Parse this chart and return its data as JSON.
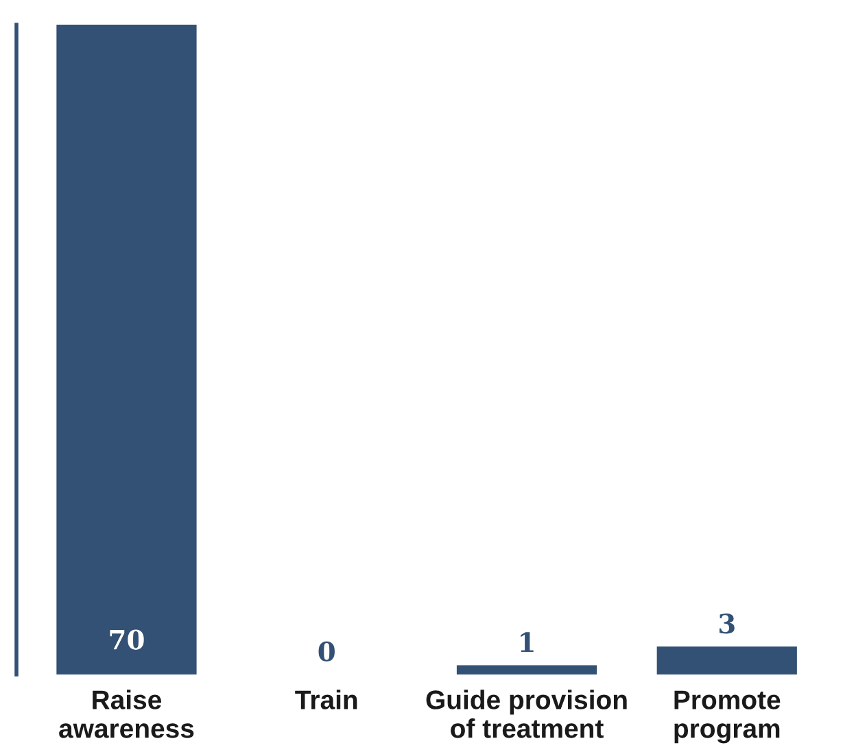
{
  "chart_data": {
    "type": "bar",
    "categories": [
      "Raise\nawareness",
      "Train",
      "Guide provision\nof treatment",
      "Promote\nprogram"
    ],
    "values": [
      70,
      0,
      1,
      3
    ],
    "color": "#335075",
    "data_labels": true,
    "grid": false,
    "legend": false
  }
}
